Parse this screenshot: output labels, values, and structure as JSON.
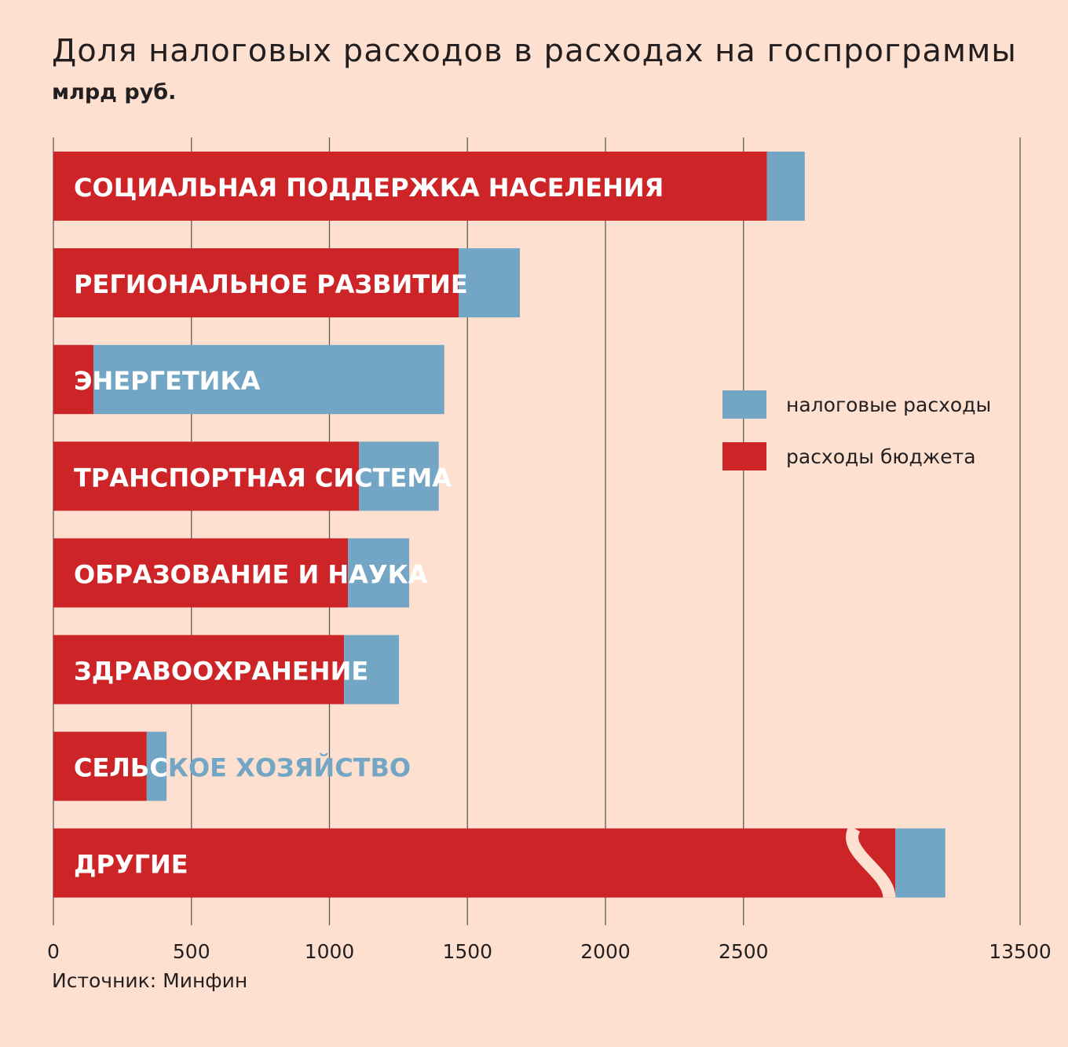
{
  "title": "Доля налоговых расходов в расходах на госпрограммы",
  "subtitle": "млрд руб.",
  "source": "Источник: Минфин",
  "colors": {
    "background": "#fde0cf",
    "budget": "#cc2427",
    "tax": "#72a6c4",
    "grid": "#5b5b5b",
    "text": "#231f20",
    "label_on_bar": "#ffffff"
  },
  "chart_data": {
    "type": "bar",
    "orientation": "horizontal",
    "stacked": true,
    "categories": [
      "СОЦИАЛЬНАЯ ПОДДЕРЖКА НАСЕЛЕНИЯ",
      "РЕГИОНАЛЬНОЕ РАЗВИТИЕ",
      "ЭНЕРГЕТИКА",
      "ТРАНСПОРТНАЯ СИСТЕМА",
      "ОБРАЗОВАНИЕ И НАУКА",
      "ЗДРАВООХРАНЕНИЕ",
      "СЕЛЬСКОЕ ХОЗЯЙСТВО",
      "ДРУГИЕ"
    ],
    "series": [
      {
        "name": "расходы бюджета",
        "values": [
          2585,
          1468,
          145,
          1107,
          1067,
          1053,
          338,
          12750
        ]
      },
      {
        "name": "налоговые расходы",
        "values": [
          137,
          222,
          1271,
          289,
          222,
          199,
          72,
          300
        ]
      }
    ],
    "xlim": [
      0,
      13500
    ],
    "axis_break": {
      "from": 2900,
      "to": 12500
    },
    "x_ticks": [
      0,
      500,
      1000,
      1500,
      2000,
      2500,
      13500
    ],
    "grid": true,
    "legend_position": "right"
  }
}
